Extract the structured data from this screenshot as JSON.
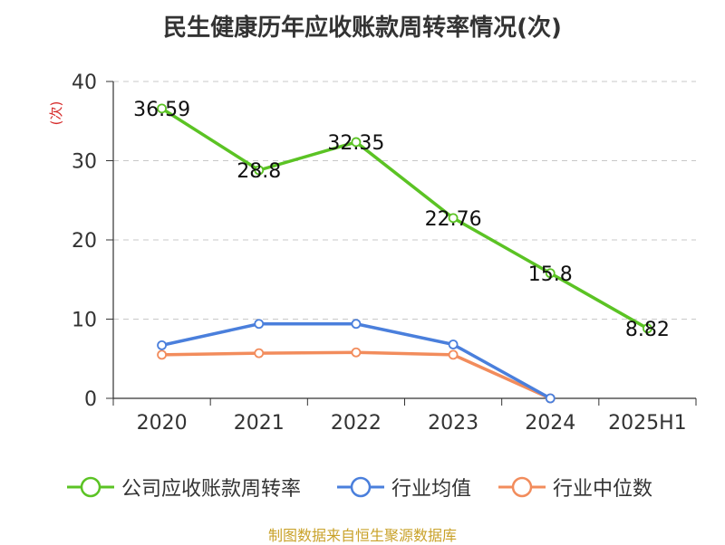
{
  "chart_data": {
    "type": "line",
    "title": "民生健康历年应收账款周转率情况(次)",
    "ylabel": "(次)",
    "xlabel": "",
    "categories": [
      "2020",
      "2021",
      "2022",
      "2023",
      "2024",
      "2025H1"
    ],
    "ylim": [
      0,
      40
    ],
    "yticks": [
      0,
      10,
      20,
      30,
      40
    ],
    "grid": true,
    "legend_position": "bottom",
    "series": [
      {
        "name": "公司应收账款周转率",
        "color": "#5bc324",
        "values": [
          36.59,
          28.8,
          32.35,
          22.76,
          15.8,
          8.82
        ],
        "labels": [
          "36.59",
          "28.8",
          "32.35",
          "22.76",
          "15.8",
          "8.82"
        ]
      },
      {
        "name": "行业均值",
        "color": "#4a7fdc",
        "values": [
          6.7,
          9.4,
          9.4,
          6.8,
          0,
          null
        ]
      },
      {
        "name": "行业中位数",
        "color": "#f28c5c",
        "values": [
          5.5,
          5.7,
          5.8,
          5.5,
          0,
          null
        ]
      }
    ]
  },
  "source_note": "制图数据来自恒生聚源数据库"
}
